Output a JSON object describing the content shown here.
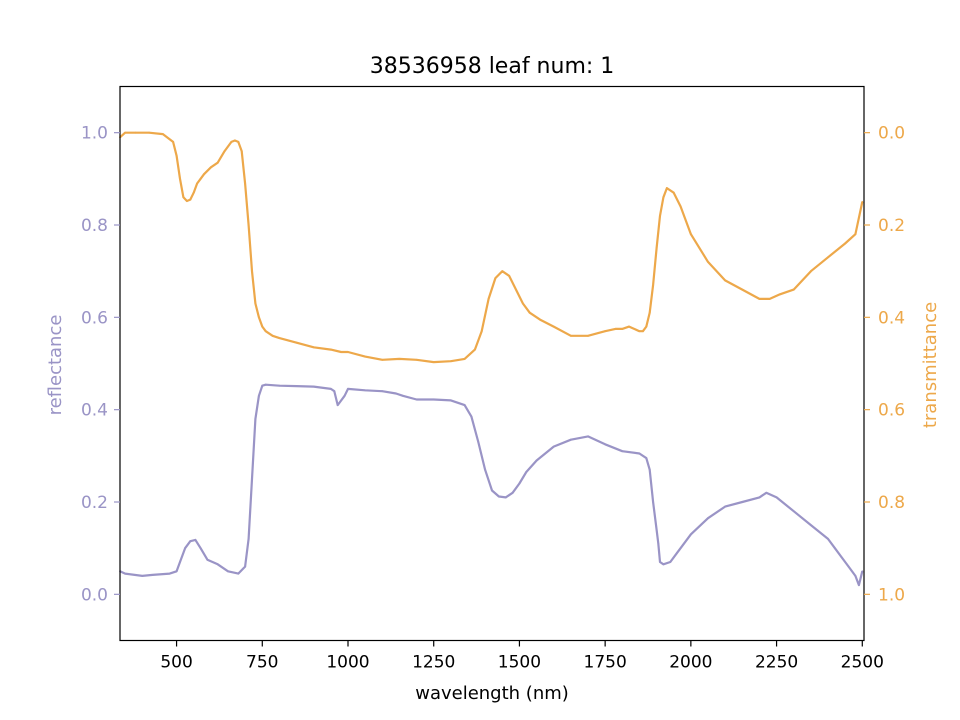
{
  "chart_data": {
    "type": "line",
    "title": "38536958 leaf num: 1",
    "xlabel": "wavelength (nm)",
    "ylabel_left": "reflectance",
    "ylabel_right": "transmittance",
    "xlim": [
      335,
      2505
    ],
    "ylim_left": [
      -0.1,
      1.1
    ],
    "ylim_right": [
      1.1,
      -0.1
    ],
    "right_axis_inverted": true,
    "grid": false,
    "x_ticks": [
      "500",
      "750",
      "1000",
      "1250",
      "1500",
      "1750",
      "2000",
      "2250",
      "2500"
    ],
    "y_ticks_left": [
      "0.0",
      "0.2",
      "0.4",
      "0.6",
      "0.8",
      "1.0"
    ],
    "y_ticks_right": [
      "0.0",
      "0.2",
      "0.4",
      "0.6",
      "0.8",
      "1.0"
    ],
    "colors": {
      "reflectance": "#9a94c6",
      "transmittance": "#eda84a",
      "axis": "#000000"
    },
    "series": [
      {
        "name": "reflectance",
        "axis": "left",
        "x": [
          335,
          350,
          400,
          430,
          480,
          500,
          510,
          525,
          540,
          555,
          570,
          590,
          620,
          650,
          680,
          700,
          710,
          720,
          730,
          740,
          750,
          760,
          800,
          850,
          900,
          950,
          960,
          970,
          990,
          1000,
          1050,
          1100,
          1140,
          1160,
          1200,
          1250,
          1300,
          1340,
          1360,
          1380,
          1400,
          1420,
          1440,
          1460,
          1480,
          1500,
          1520,
          1550,
          1600,
          1650,
          1700,
          1750,
          1800,
          1850,
          1870,
          1880,
          1890,
          1900,
          1905,
          1910,
          1920,
          1940,
          1960,
          2000,
          2050,
          2100,
          2150,
          2200,
          2220,
          2250,
          2300,
          2350,
          2400,
          2420,
          2440,
          2460,
          2480,
          2490,
          2500
        ],
        "y": [
          0.05,
          0.045,
          0.04,
          0.042,
          0.045,
          0.05,
          0.07,
          0.1,
          0.115,
          0.118,
          0.1,
          0.075,
          0.065,
          0.05,
          0.045,
          0.06,
          0.12,
          0.25,
          0.38,
          0.43,
          0.452,
          0.454,
          0.452,
          0.451,
          0.45,
          0.445,
          0.44,
          0.41,
          0.43,
          0.445,
          0.442,
          0.44,
          0.435,
          0.43,
          0.422,
          0.422,
          0.42,
          0.41,
          0.385,
          0.33,
          0.27,
          0.225,
          0.212,
          0.21,
          0.22,
          0.24,
          0.265,
          0.29,
          0.32,
          0.335,
          0.342,
          0.325,
          0.31,
          0.305,
          0.295,
          0.27,
          0.2,
          0.14,
          0.11,
          0.07,
          0.065,
          0.07,
          0.09,
          0.13,
          0.165,
          0.19,
          0.2,
          0.21,
          0.22,
          0.21,
          0.18,
          0.15,
          0.12,
          0.1,
          0.08,
          0.06,
          0.04,
          0.02,
          0.05
        ]
      },
      {
        "name": "transmittance",
        "axis": "right",
        "x": [
          335,
          350,
          380,
          420,
          460,
          490,
          500,
          510,
          520,
          530,
          540,
          550,
          560,
          570,
          580,
          600,
          620,
          640,
          660,
          670,
          680,
          690,
          700,
          710,
          720,
          730,
          740,
          750,
          760,
          780,
          800,
          850,
          900,
          950,
          980,
          1000,
          1050,
          1100,
          1150,
          1200,
          1250,
          1300,
          1340,
          1370,
          1390,
          1410,
          1430,
          1450,
          1470,
          1490,
          1510,
          1530,
          1560,
          1600,
          1650,
          1700,
          1750,
          1780,
          1800,
          1820,
          1850,
          1860,
          1870,
          1880,
          1890,
          1900,
          1910,
          1920,
          1930,
          1950,
          1970,
          2000,
          2050,
          2100,
          2150,
          2200,
          2230,
          2260,
          2300,
          2350,
          2400,
          2450,
          2480,
          2500
        ],
        "y": [
          0.01,
          0.0,
          0.0,
          0.0,
          0.003,
          0.02,
          0.05,
          0.1,
          0.14,
          0.148,
          0.145,
          0.13,
          0.11,
          0.1,
          0.09,
          0.075,
          0.065,
          0.04,
          0.02,
          0.017,
          0.02,
          0.04,
          0.11,
          0.2,
          0.3,
          0.37,
          0.4,
          0.42,
          0.43,
          0.44,
          0.445,
          0.455,
          0.465,
          0.47,
          0.475,
          0.475,
          0.485,
          0.492,
          0.49,
          0.492,
          0.497,
          0.495,
          0.49,
          0.47,
          0.43,
          0.36,
          0.315,
          0.3,
          0.31,
          0.34,
          0.37,
          0.39,
          0.405,
          0.42,
          0.44,
          0.44,
          0.43,
          0.425,
          0.425,
          0.42,
          0.43,
          0.43,
          0.42,
          0.39,
          0.33,
          0.25,
          0.18,
          0.14,
          0.12,
          0.13,
          0.16,
          0.22,
          0.28,
          0.32,
          0.34,
          0.36,
          0.36,
          0.35,
          0.34,
          0.3,
          0.27,
          0.24,
          0.22,
          0.15
        ]
      }
    ]
  }
}
